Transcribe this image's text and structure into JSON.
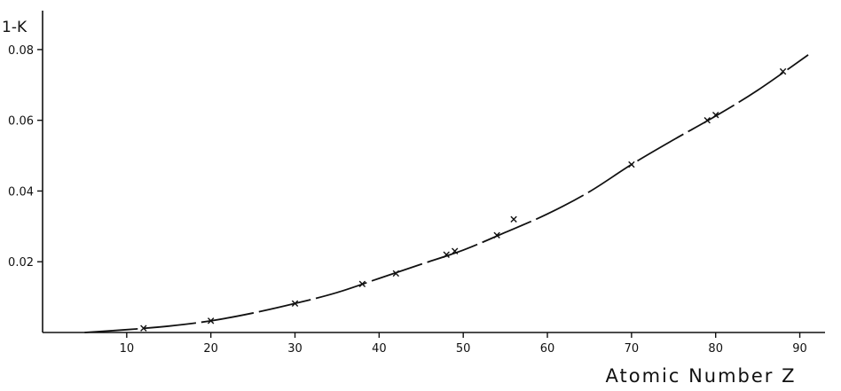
{
  "chart_data": {
    "type": "line",
    "title": "",
    "xlabel": "Atomic Number Z",
    "ylabel": "1-K",
    "xlim": [
      0,
      93
    ],
    "ylim": [
      0,
      0.09
    ],
    "x_ticks": [
      10,
      20,
      30,
      40,
      50,
      60,
      70,
      80,
      90
    ],
    "y_ticks": [
      0.02,
      0.04,
      0.06,
      0.08
    ],
    "x_tick_labels": [
      "10",
      "20",
      "30",
      "40",
      "50",
      "60",
      "70",
      "80",
      "90"
    ],
    "y_tick_labels": [
      "0.02",
      "0.04",
      "0.06",
      "0.08"
    ],
    "grid": false,
    "legend": "none",
    "series": [
      {
        "kind": "curve",
        "x": [
          5,
          10,
          15,
          20,
          25,
          30,
          35,
          40,
          45,
          50,
          55,
          60,
          65,
          70,
          75,
          80,
          85,
          91
        ],
        "y": [
          0.0,
          0.0008,
          0.0018,
          0.0033,
          0.0055,
          0.0082,
          0.0113,
          0.0153,
          0.0193,
          0.0233,
          0.0283,
          0.0335,
          0.0398,
          0.0475,
          0.0545,
          0.0612,
          0.0685,
          0.0785
        ]
      },
      {
        "kind": "points",
        "marker": "x",
        "x": [
          12,
          20,
          30,
          38,
          42,
          48,
          49,
          54,
          56,
          70,
          79,
          80,
          88
        ],
        "y": [
          0.0012,
          0.0033,
          0.0082,
          0.0137,
          0.0167,
          0.022,
          0.023,
          0.0275,
          0.032,
          0.0475,
          0.06,
          0.0615,
          0.0738
        ]
      }
    ]
  }
}
